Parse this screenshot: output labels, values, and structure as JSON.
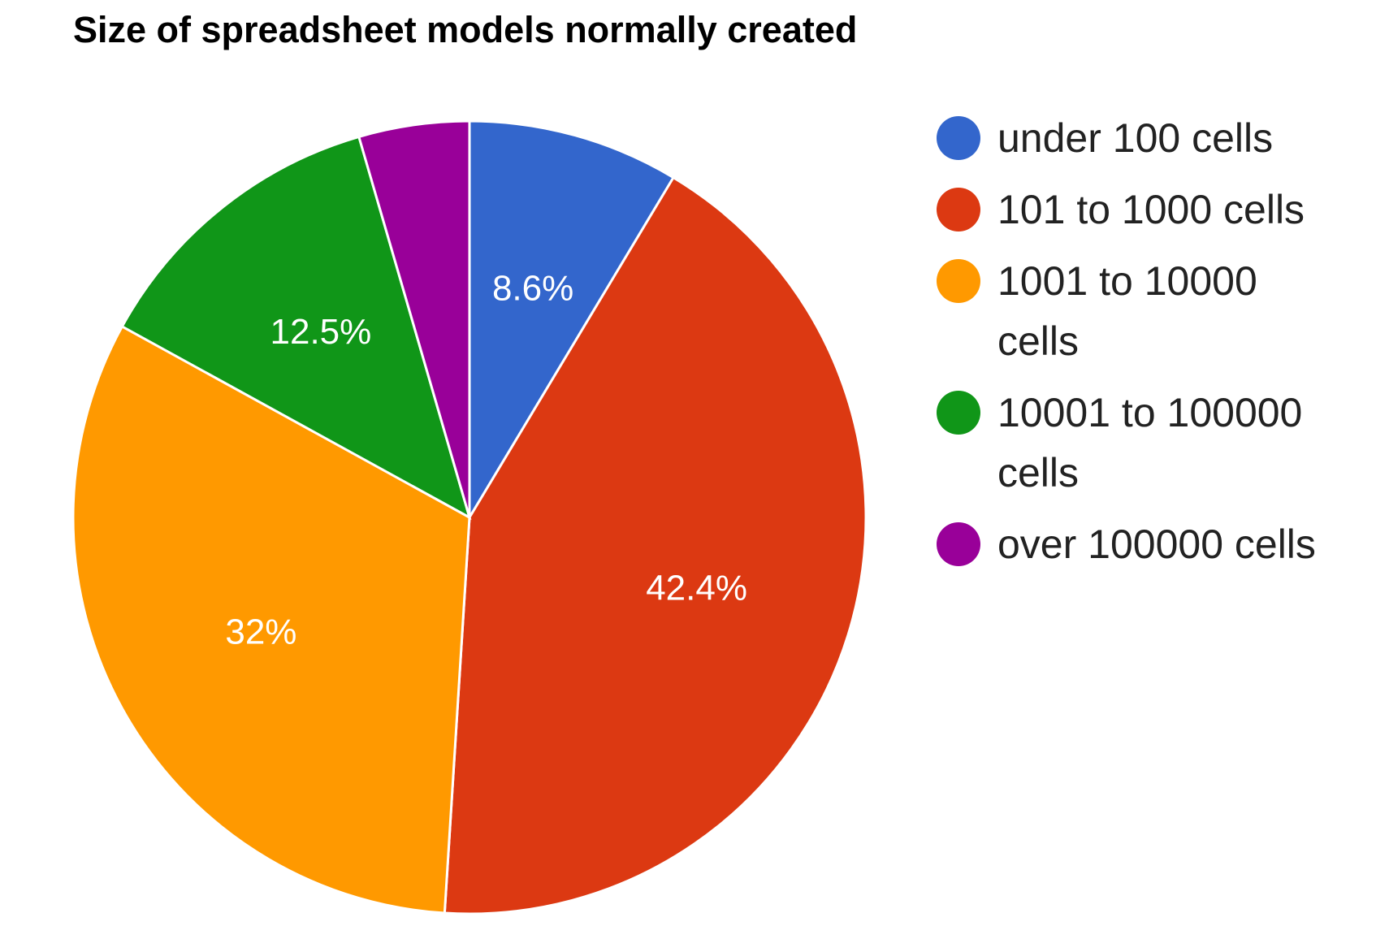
{
  "chart_data": {
    "type": "pie",
    "title": "Size of spreadsheet models normally created",
    "slices": [
      {
        "label": [
          "under 100 cells"
        ],
        "value": 8.6,
        "display": "8.6%",
        "color": "#3366cc"
      },
      {
        "label": [
          "101 to 1000 cells"
        ],
        "value": 42.4,
        "display": "42.4%",
        "color": "#dc3912"
      },
      {
        "label": [
          "1001 to 10000",
          "cells"
        ],
        "value": 32.0,
        "display": "32%",
        "color": "#ff9900"
      },
      {
        "label": [
          "10001 to 100000",
          "cells"
        ],
        "value": 12.5,
        "display": "12.5%",
        "color": "#109618"
      },
      {
        "label": [
          "over 100000 cells"
        ],
        "value": 4.5,
        "display": "",
        "color": "#990099"
      }
    ],
    "legend_position": "right",
    "start_angle": "top",
    "direction": "clockwise"
  }
}
